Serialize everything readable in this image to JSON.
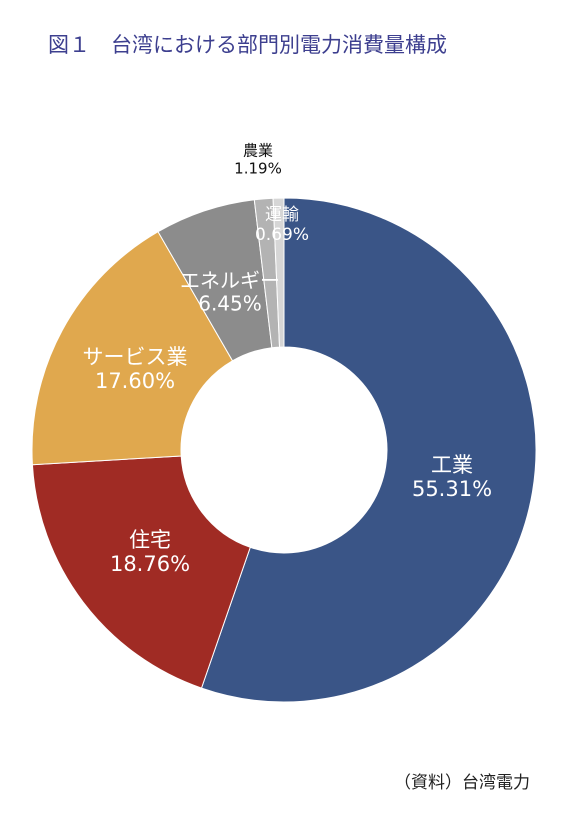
{
  "chart_data": {
    "type": "donut",
    "title": "図１　台湾における部門別電力消費量構成",
    "categories": [
      "工業",
      "住宅",
      "サービス業",
      "エネルギー",
      "農業",
      "運輸"
    ],
    "values": [
      55.31,
      18.76,
      17.6,
      6.45,
      1.19,
      0.69
    ],
    "value_labels": [
      "55.31%",
      "18.76%",
      "17.60%",
      "6.45%",
      "1.19%",
      "0.69%"
    ],
    "colors": [
      "#3a5587",
      "#a02b24",
      "#e0a84e",
      "#8c8c8c",
      "#b3b3b3",
      "#d6d6d6"
    ],
    "source": "（資料）台湾電力"
  }
}
